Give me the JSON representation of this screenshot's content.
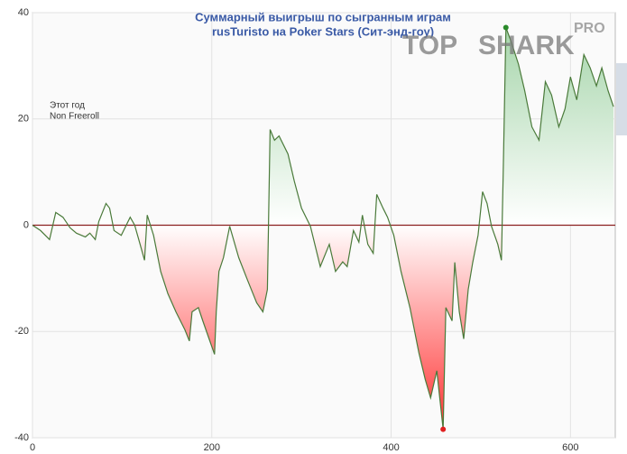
{
  "chart_data": {
    "type": "area-line",
    "title": "Суммарный выигрыш по сыгранным играм",
    "subtitle": "rusTuristo на Poker Stars (Сит-энд-гоу)",
    "annotations": [
      "Этот год",
      "Non Freeroll"
    ],
    "logo": [
      "TOP",
      "SHARK",
      "PRO"
    ],
    "x": [
      0,
      9,
      19,
      26,
      34,
      42,
      49,
      59,
      64,
      70,
      74,
      82,
      86,
      91,
      99,
      109,
      114,
      120,
      125,
      128,
      135,
      143,
      151,
      160,
      170,
      175,
      178,
      185,
      190,
      197,
      203,
      205,
      208,
      213,
      220,
      230,
      240,
      250,
      257,
      262,
      265,
      270,
      275,
      285,
      292,
      300,
      310,
      321,
      331,
      338,
      346,
      351,
      358,
      364,
      368,
      374,
      380,
      384,
      391,
      396,
      403,
      411,
      421,
      431,
      438,
      444,
      451,
      458,
      461,
      468,
      471,
      476,
      481,
      486,
      491,
      497,
      502,
      507,
      512,
      519,
      523,
      525,
      528,
      534,
      542,
      549,
      557,
      565,
      572,
      579,
      587,
      594,
      600,
      607,
      615,
      622,
      629,
      635,
      642,
      648
    ],
    "series": [
      {
        "color": "#4a7a3a",
        "values": [
          0,
          -1,
          -2.7,
          2.4,
          1.5,
          -0.5,
          -1.5,
          -2.2,
          -1.5,
          -2.7,
          0.7,
          4.1,
          3.2,
          -1,
          -1.9,
          1.5,
          0,
          -3.6,
          -6.6,
          1.9,
          -1.9,
          -8.7,
          -12.9,
          -16.3,
          -19.7,
          -21.8,
          -16.3,
          -15.5,
          -18,
          -21.4,
          -24.3,
          -16.3,
          -8.7,
          -6.1,
          -0.2,
          -6.1,
          -10.4,
          -14.6,
          -16.3,
          -12.1,
          18,
          16,
          16.8,
          13.4,
          8.3,
          3.2,
          -0.2,
          -7.8,
          -3.6,
          -8.7,
          -6.9,
          -7.8,
          -1,
          -3.2,
          1.9,
          -3.6,
          -5.3,
          5.8,
          3.2,
          1.5,
          -1.9,
          -8.7,
          -15.5,
          -24,
          -29,
          -32.5,
          -27.4,
          -38.4,
          -15.5,
          -18,
          -7,
          -16.3,
          -21.4,
          -12.1,
          -7,
          -1.9,
          6.3,
          4.1,
          -0.2,
          -3.6,
          -6.6,
          10,
          37.2,
          34.5,
          30.3,
          25.3,
          18.5,
          16,
          27,
          24.5,
          18.5,
          21.9,
          27.9,
          23.6,
          32.1,
          29.6,
          26.2,
          29.6,
          25.3,
          22.3
        ]
      }
    ],
    "min_color": "#e02020",
    "max_color": "#2a8a2a",
    "zero_line_color": "#8b2020",
    "xlim": [
      0,
      650
    ],
    "ylim": [
      -40,
      40
    ],
    "xticks": [
      0,
      200,
      400,
      600
    ],
    "yticks": [
      -40,
      -20,
      0,
      20,
      40
    ],
    "grid": true
  }
}
